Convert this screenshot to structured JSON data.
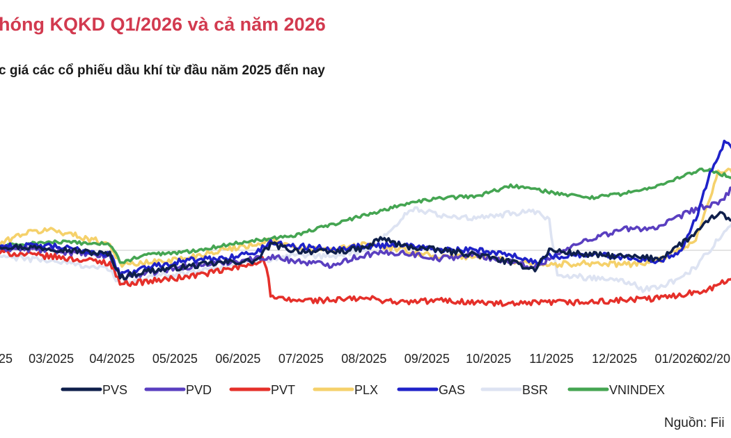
{
  "header": {
    "title": "hóng KQKD Q1/2026 và cả năm 2026",
    "subtitle": "c giá các cổ phiếu dầu khí từ đầu năm 2025 đến nay"
  },
  "source": "Nguồn: Fii",
  "chart_data": {
    "type": "line",
    "title": "",
    "xlabel": "",
    "ylabel": "",
    "x_tick_labels": [
      "25",
      "03/2025",
      "04/2025",
      "05/2025",
      "06/2025",
      "07/2025",
      "08/2025",
      "09/2025",
      "10/2025",
      "11/2025",
      "12/2025",
      "01/2026",
      "02/20"
    ],
    "x_tick_times": [
      0.0,
      0.07,
      0.153,
      0.239,
      0.325,
      0.411,
      0.497,
      0.583,
      0.667,
      0.753,
      0.839,
      0.925,
      1.0
    ],
    "x_range": [
      0.0,
      1.0
    ],
    "ylim": [
      -40,
      70
    ],
    "baseline": 0,
    "legend_position": "bottom",
    "series": [
      {
        "name": "PVS",
        "color": "#0f1f4b",
        "t": [
          0.0,
          0.07,
          0.15,
          0.165,
          0.2,
          0.25,
          0.3,
          0.35,
          0.37,
          0.4,
          0.45,
          0.5,
          0.52,
          0.55,
          0.6,
          0.65,
          0.7,
          0.73,
          0.75,
          0.8,
          0.85,
          0.9,
          0.95,
          0.98,
          1.0
        ],
        "y": [
          2,
          1,
          -2,
          -13,
          -10,
          -8,
          -6,
          -5,
          3,
          0,
          -1,
          1,
          6,
          2,
          0,
          -2,
          -6,
          -9,
          0,
          -2,
          -3,
          -4,
          8,
          18,
          14
        ]
      },
      {
        "name": "PVD",
        "color": "#5a3fc0",
        "t": [
          0.0,
          0.07,
          0.15,
          0.165,
          0.2,
          0.25,
          0.3,
          0.35,
          0.37,
          0.4,
          0.45,
          0.5,
          0.55,
          0.6,
          0.65,
          0.7,
          0.73,
          0.75,
          0.8,
          0.85,
          0.9,
          0.95,
          0.98,
          1.0
        ],
        "y": [
          1,
          0,
          -3,
          -13,
          -11,
          -8,
          -6,
          -4,
          -3,
          -5,
          -7,
          -2,
          -1,
          -4,
          -2,
          -6,
          -8,
          -4,
          5,
          10,
          11,
          20,
          22,
          30
        ]
      },
      {
        "name": "PVT",
        "color": "#e5302a",
        "t": [
          0.0,
          0.07,
          0.15,
          0.165,
          0.2,
          0.25,
          0.3,
          0.34,
          0.36,
          0.365,
          0.37,
          0.4,
          0.45,
          0.5,
          0.55,
          0.6,
          0.65,
          0.7,
          0.75,
          0.8,
          0.85,
          0.9,
          0.95,
          0.98,
          1.0
        ],
        "y": [
          -1,
          -3,
          -6,
          -16,
          -15,
          -13,
          -10,
          -7,
          -4,
          -10,
          -23,
          -24,
          -24,
          -23,
          -25,
          -24,
          -25,
          -26,
          -25,
          -25,
          -24,
          -23,
          -20,
          -17,
          -13
        ]
      },
      {
        "name": "PLX",
        "color": "#f5d16b",
        "t": [
          0.0,
          0.03,
          0.07,
          0.15,
          0.165,
          0.2,
          0.25,
          0.3,
          0.35,
          0.37,
          0.4,
          0.45,
          0.5,
          0.55,
          0.6,
          0.65,
          0.7,
          0.75,
          0.8,
          0.85,
          0.9,
          0.95,
          0.98,
          1.0
        ],
        "y": [
          3,
          8,
          10,
          3,
          -7,
          -6,
          -4,
          0,
          3,
          5,
          1,
          0,
          3,
          0,
          -3,
          -3,
          -5,
          -7,
          -6,
          -7,
          -5,
          5,
          37,
          38
        ]
      },
      {
        "name": "GAS",
        "color": "#1f22c9",
        "t": [
          0.0,
          0.07,
          0.15,
          0.165,
          0.2,
          0.25,
          0.3,
          0.35,
          0.37,
          0.4,
          0.45,
          0.5,
          0.55,
          0.6,
          0.65,
          0.7,
          0.73,
          0.75,
          0.8,
          0.85,
          0.9,
          0.93,
          0.95,
          0.97,
          0.98,
          0.99,
          1.0
        ],
        "y": [
          2,
          2,
          -2,
          -12,
          -8,
          -5,
          -4,
          -1,
          4,
          2,
          1,
          2,
          3,
          0,
          0,
          -2,
          -6,
          -3,
          -2,
          -3,
          -5,
          0,
          15,
          38,
          45,
          53,
          50
        ]
      },
      {
        "name": "BSR",
        "color": "#dde3f2",
        "t": [
          0.0,
          0.07,
          0.15,
          0.165,
          0.2,
          0.25,
          0.3,
          0.35,
          0.37,
          0.4,
          0.45,
          0.5,
          0.53,
          0.56,
          0.6,
          0.65,
          0.7,
          0.73,
          0.75,
          0.76,
          0.8,
          0.85,
          0.88,
          0.92,
          0.95,
          0.98,
          1.0
        ],
        "y": [
          -3,
          -5,
          -9,
          -17,
          -13,
          -11,
          -8,
          -5,
          -4,
          -3,
          -3,
          0,
          8,
          20,
          17,
          15,
          18,
          18,
          15,
          -12,
          -13,
          -14,
          -19,
          -15,
          -8,
          5,
          12
        ]
      },
      {
        "name": "VNINDEX",
        "color": "#45a552",
        "t": [
          0.0,
          0.07,
          0.15,
          0.165,
          0.2,
          0.25,
          0.3,
          0.35,
          0.4,
          0.45,
          0.5,
          0.55,
          0.6,
          0.65,
          0.7,
          0.75,
          0.8,
          0.85,
          0.9,
          0.93,
          0.95,
          0.97,
          0.98,
          1.0
        ],
        "y": [
          2,
          4,
          3,
          -6,
          -2,
          -1,
          2,
          5,
          7,
          12,
          17,
          22,
          25,
          26,
          31,
          28,
          25,
          27,
          31,
          35,
          38,
          39,
          37,
          35
        ]
      }
    ]
  }
}
